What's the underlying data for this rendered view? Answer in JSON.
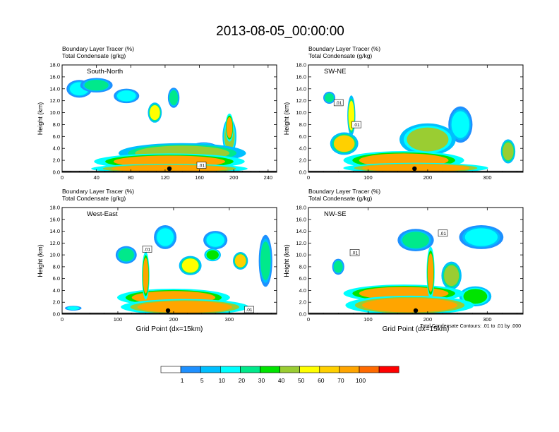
{
  "chart_data": {
    "title": "2013-08-05_00:00:00",
    "type": "heatmap",
    "colorbar": {
      "levels": [
        "1",
        "5",
        "10",
        "20",
        "30",
        "40",
        "50",
        "60",
        "70",
        "100"
      ],
      "colors": [
        "#ffffff",
        "#1e90ff",
        "#00bfff",
        "#00ffff",
        "#00e98b",
        "#00e400",
        "#9acd32",
        "#ffff00",
        "#ffd000",
        "#ffa500",
        "#ff6a00",
        "#ff0000"
      ]
    },
    "footnote": "Total Condensate Contours: .01 to .01 by .000",
    "panels": [
      {
        "id": "south-north",
        "label": "South-North",
        "line1": "Boundary Layer Tracer   (%)",
        "line2": "Total Condensate   (g/kg)",
        "ylabel": "Height (km)",
        "xlabel": "",
        "xlim": [
          0,
          250
        ],
        "ylim": [
          0,
          18
        ],
        "xticks": [
          "0",
          "40",
          "80",
          "120",
          "160",
          "200",
          "240"
        ],
        "yticks": [
          "0.0",
          "2.0",
          "4.0",
          "6.0",
          "8.0",
          "10.0",
          "12.0",
          "14.0",
          "16.0",
          "18.0"
        ],
        "marker_x": 125,
        "contour_labels": [
          {
            "x": 162,
            "y": 1.0,
            "text": ".01"
          }
        ],
        "blobs": [
          {
            "x": 125,
            "y": 0.6,
            "w": 135,
            "h": 1.2,
            "v": 95
          },
          {
            "x": 125,
            "y": 1.8,
            "w": 130,
            "h": 2.0,
            "v": 70
          },
          {
            "x": 140,
            "y": 3.2,
            "w": 110,
            "h": 2.5,
            "v": 45
          },
          {
            "x": 20,
            "y": 14.0,
            "w": 22,
            "h": 2.2,
            "v": 12
          },
          {
            "x": 40,
            "y": 14.6,
            "w": 28,
            "h": 1.8,
            "v": 22
          },
          {
            "x": 75,
            "y": 12.8,
            "w": 22,
            "h": 1.8,
            "v": 10
          },
          {
            "x": 108,
            "y": 10.0,
            "w": 12,
            "h": 2.5,
            "v": 55
          },
          {
            "x": 130,
            "y": 12.5,
            "w": 10,
            "h": 2.5,
            "v": 22
          },
          {
            "x": 195,
            "y": 7.5,
            "w": 7,
            "h": 3.5,
            "v": 75
          },
          {
            "x": 195,
            "y": 6.0,
            "w": 12,
            "h": 4.5,
            "v": 40
          },
          {
            "x": 165,
            "y": 4.0,
            "w": 25,
            "h": 1.5,
            "v": 30
          }
        ]
      },
      {
        "id": "sw-ne",
        "label": "SW-NE",
        "line1": "Boundary Layer Tracer   (%)",
        "line2": "Total Condensate   (g/kg)",
        "ylabel": "Height (km)",
        "xlabel": "",
        "xlim": [
          0,
          360
        ],
        "ylim": [
          0,
          18
        ],
        "xticks": [
          "0",
          "100",
          "200",
          "300"
        ],
        "yticks": [
          "0.0",
          "2.0",
          "4.0",
          "6.0",
          "8.0",
          "10.0",
          "12.0",
          "14.0",
          "16.0",
          "18.0"
        ],
        "marker_x": 178,
        "contour_labels": [
          {
            "x": 50,
            "y": 11.5,
            "text": ".01"
          },
          {
            "x": 80,
            "y": 7.8,
            "text": ".01"
          }
        ],
        "blobs": [
          {
            "x": 180,
            "y": 0.7,
            "w": 180,
            "h": 1.3,
            "v": 95
          },
          {
            "x": 160,
            "y": 2.0,
            "w": 150,
            "h": 2.3,
            "v": 70
          },
          {
            "x": 60,
            "y": 4.8,
            "w": 35,
            "h": 2.8,
            "v": 65
          },
          {
            "x": 72,
            "y": 9.5,
            "w": 10,
            "h": 5.0,
            "v": 55
          },
          {
            "x": 35,
            "y": 12.5,
            "w": 15,
            "h": 1.5,
            "v": 20
          },
          {
            "x": 200,
            "y": 5.5,
            "w": 70,
            "h": 4.0,
            "v": 40
          },
          {
            "x": 255,
            "y": 8.0,
            "w": 30,
            "h": 4.5,
            "v": 18
          },
          {
            "x": 335,
            "y": 3.5,
            "w": 18,
            "h": 3.0,
            "v": 45
          }
        ]
      },
      {
        "id": "west-east",
        "label": "West-East",
        "line1": "Boundary Layer Tracer   (%)",
        "line2": "Total Condensate   (g/kg)",
        "ylabel": "Height (km)",
        "xlabel": "Grid Point (dx=15km)",
        "xlim": [
          0,
          385
        ],
        "ylim": [
          0,
          18
        ],
        "xticks": [
          "0",
          "100",
          "200",
          "300"
        ],
        "yticks": [
          "0.0",
          "2.0",
          "4.0",
          "6.0",
          "8.0",
          "10.0",
          "12.0",
          "14.0",
          "16.0",
          "18.0"
        ],
        "marker_x": 190,
        "contour_labels": [
          {
            "x": 152,
            "y": 10.8,
            "text": ".01"
          },
          {
            "x": 335,
            "y": 0.6,
            "text": ".01"
          }
        ],
        "blobs": [
          {
            "x": 220,
            "y": 1.2,
            "w": 170,
            "h": 2.0,
            "v": 95
          },
          {
            "x": 200,
            "y": 2.8,
            "w": 150,
            "h": 2.2,
            "v": 70
          },
          {
            "x": 150,
            "y": 6.5,
            "w": 10,
            "h": 6.0,
            "v": 80
          },
          {
            "x": 115,
            "y": 10.0,
            "w": 28,
            "h": 2.2,
            "v": 22
          },
          {
            "x": 185,
            "y": 13.0,
            "w": 30,
            "h": 3.0,
            "v": 12
          },
          {
            "x": 275,
            "y": 12.5,
            "w": 32,
            "h": 2.3,
            "v": 15
          },
          {
            "x": 230,
            "y": 8.2,
            "w": 30,
            "h": 2.4,
            "v": 50
          },
          {
            "x": 270,
            "y": 10.0,
            "w": 22,
            "h": 1.6,
            "v": 38
          },
          {
            "x": 320,
            "y": 9.0,
            "w": 20,
            "h": 2.2,
            "v": 60
          },
          {
            "x": 365,
            "y": 9.0,
            "w": 18,
            "h": 6.5,
            "v": 20
          },
          {
            "x": 20,
            "y": 1.0,
            "w": 22,
            "h": 0.6,
            "v": 18
          }
        ]
      },
      {
        "id": "nw-se",
        "label": "NW-SE",
        "line1": "Boundary Layer Tracer   (%)",
        "line2": "Total Condensate   (g/kg)",
        "ylabel": "Height (km)",
        "xlabel": "Grid Point (dx=15km)",
        "xlim": [
          0,
          360
        ],
        "ylim": [
          0,
          18
        ],
        "xticks": [
          "0",
          "100",
          "200",
          "300"
        ],
        "yticks": [
          "0.0",
          "2.0",
          "4.0",
          "6.0",
          "8.0",
          "10.0",
          "12.0",
          "14.0",
          "16.0",
          "18.0"
        ],
        "marker_x": 180,
        "contour_labels": [
          {
            "x": 225,
            "y": 13.5,
            "text": ".01"
          },
          {
            "x": 77,
            "y": 10.2,
            "text": ".01"
          }
        ],
        "blobs": [
          {
            "x": 170,
            "y": 1.5,
            "w": 160,
            "h": 2.4,
            "v": 95
          },
          {
            "x": 160,
            "y": 3.5,
            "w": 150,
            "h": 2.2,
            "v": 70
          },
          {
            "x": 205,
            "y": 7.0,
            "w": 10,
            "h": 6.5,
            "v": 85
          },
          {
            "x": 50,
            "y": 8.0,
            "w": 15,
            "h": 2.0,
            "v": 20
          },
          {
            "x": 180,
            "y": 12.5,
            "w": 45,
            "h": 2.8,
            "v": 20
          },
          {
            "x": 290,
            "y": 13.0,
            "w": 55,
            "h": 3.0,
            "v": 14
          },
          {
            "x": 240,
            "y": 6.5,
            "w": 25,
            "h": 3.5,
            "v": 45
          },
          {
            "x": 280,
            "y": 3.0,
            "w": 40,
            "h": 2.5,
            "v": 35
          }
        ]
      }
    ]
  }
}
